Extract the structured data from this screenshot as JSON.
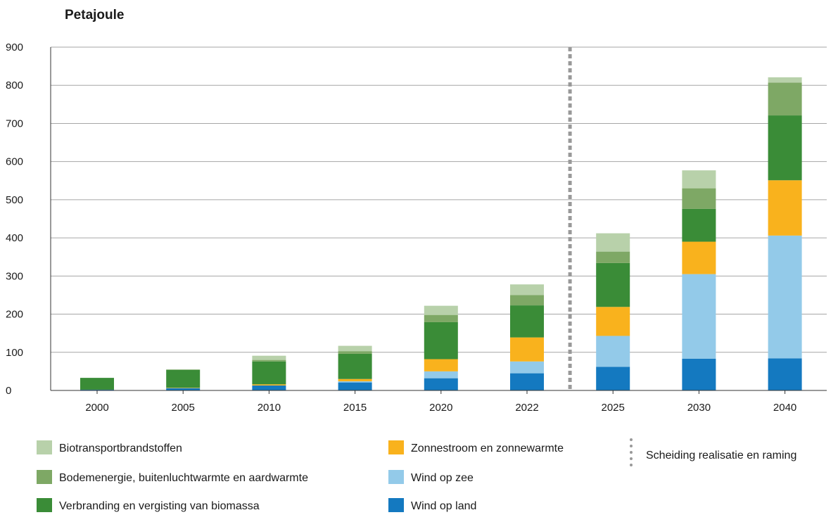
{
  "chart_data": {
    "type": "bar",
    "stacked": true,
    "title": "",
    "unit_label": "Petajoule",
    "xlabel": "",
    "ylabel": "",
    "ylim": [
      0,
      900
    ],
    "yticks": [
      0,
      100,
      200,
      300,
      400,
      500,
      600,
      700,
      800,
      900
    ],
    "grid": true,
    "categories": [
      "2000",
      "2005",
      "2010",
      "2015",
      "2020",
      "2022",
      "2025",
      "2030",
      "2040"
    ],
    "series": [
      {
        "name": "Wind op land",
        "color": "#1479c0",
        "values": [
          2,
          6,
          13,
          21,
          32,
          45,
          62,
          83,
          84
        ]
      },
      {
        "name": "Wind op zee",
        "color": "#93cae9",
        "values": [
          0,
          0,
          0,
          3,
          18,
          31,
          81,
          222,
          322
        ]
      },
      {
        "name": "Zonnestroom en zonnewarmte",
        "color": "#f9b21d",
        "values": [
          0,
          1,
          3,
          6,
          32,
          63,
          76,
          85,
          145
        ]
      },
      {
        "name": "Verbranding en vergisting van biomassa",
        "color": "#3a8c37",
        "values": [
          31,
          47,
          60,
          66,
          97,
          84,
          115,
          86,
          170
        ]
      },
      {
        "name": "Bodemenergie, buitenluchtwarmte en aardwarmte",
        "color": "#7ea865",
        "values": [
          0,
          1,
          4,
          7,
          19,
          27,
          30,
          54,
          86
        ]
      },
      {
        "name": "Biotransportbrandstoffen",
        "color": "#b8d1aa",
        "values": [
          0,
          0,
          11,
          14,
          24,
          28,
          48,
          47,
          14
        ]
      }
    ],
    "divider": {
      "label": "Scheiding realisatie en raming",
      "between": [
        "2022",
        "2025"
      ],
      "color": "#999999"
    },
    "legend_position": "bottom"
  }
}
